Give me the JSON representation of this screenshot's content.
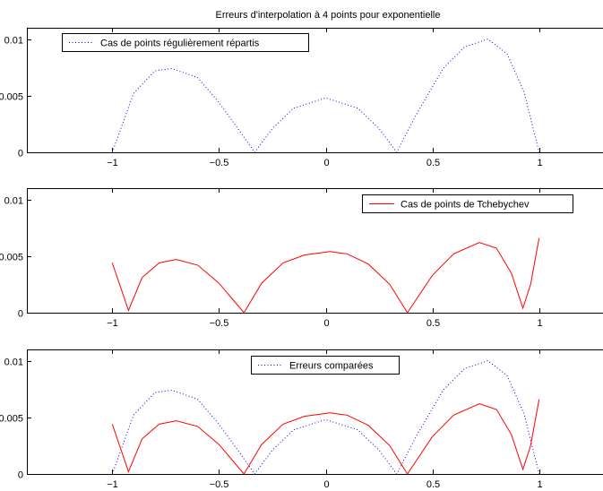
{
  "figure": {
    "title": "Erreurs d'interpolation à 4 points pour exponentielle"
  },
  "chart_data": [
    {
      "type": "line",
      "title": "Erreurs d'interpolation à 4 points pour exponentielle",
      "xlim": [
        -1.4,
        1.4
      ],
      "ylim": [
        0,
        0.011
      ],
      "x_ticks": [
        -1,
        -0.5,
        0,
        0.5,
        1
      ],
      "x_tick_labels": [
        "−1",
        "−0.5",
        "0",
        "0.5",
        "1"
      ],
      "y_ticks": [
        0,
        0.005,
        0.01
      ],
      "y_tick_labels": [
        "0",
        "0.005",
        "0.01"
      ],
      "grid": false,
      "legend_position": "top-left",
      "series": [
        {
          "name": "Cas de points régulièrement répartis",
          "color": "#0000ff",
          "style": "dotted",
          "x": [
            -1,
            -0.9,
            -0.8,
            -0.72,
            -0.6,
            -0.5,
            -0.4,
            -0.333,
            -0.25,
            -0.15,
            0,
            0.15,
            0.25,
            0.333,
            0.42,
            0.55,
            0.65,
            0.76,
            0.85,
            0.93,
            1
          ],
          "y": [
            0,
            0.0052,
            0.0072,
            0.0074,
            0.0066,
            0.0044,
            0.0018,
            0,
            0.0021,
            0.0039,
            0.0048,
            0.0039,
            0.0021,
            0,
            0.0032,
            0.0074,
            0.0093,
            0.01,
            0.0087,
            0.0053,
            0
          ]
        }
      ]
    },
    {
      "type": "line",
      "xlim": [
        -1.4,
        1.4
      ],
      "ylim": [
        0,
        0.011
      ],
      "x_ticks": [
        -1,
        -0.5,
        0,
        0.5,
        1
      ],
      "x_tick_labels": [
        "−1",
        "−0.5",
        "0",
        "0.5",
        "1"
      ],
      "y_ticks": [
        0,
        0.005,
        0.01
      ],
      "y_tick_labels": [
        "0",
        "0.005",
        "0.01"
      ],
      "grid": false,
      "legend_position": "top-right",
      "series": [
        {
          "name": "Cas de points de Tchebychev",
          "color": "#ff0000",
          "style": "solid",
          "x": [
            -1,
            -0.96,
            -0.924,
            -0.86,
            -0.78,
            -0.7,
            -0.6,
            -0.5,
            -0.383,
            -0.3,
            -0.2,
            -0.1,
            0.02,
            0.1,
            0.2,
            0.3,
            0.383,
            0.5,
            0.6,
            0.72,
            0.8,
            0.87,
            0.924,
            0.96,
            1
          ],
          "y": [
            0.0044,
            0.0022,
            0.0002,
            0.0031,
            0.0044,
            0.0047,
            0.0042,
            0.0026,
            0,
            0.0026,
            0.0044,
            0.0051,
            0.0054,
            0.0052,
            0.0043,
            0.0025,
            0,
            0.0033,
            0.0052,
            0.0062,
            0.0057,
            0.0035,
            0.0004,
            0.0025,
            0.0066
          ]
        }
      ]
    },
    {
      "type": "line",
      "xlim": [
        -1.4,
        1.4
      ],
      "ylim": [
        0,
        0.011
      ],
      "x_ticks": [
        -1,
        -0.5,
        0,
        0.5,
        1
      ],
      "x_tick_labels": [
        "−1",
        "−0.5",
        "0",
        "0.5",
        "1"
      ],
      "y_ticks": [
        0,
        0.005,
        0.01
      ],
      "y_tick_labels": [
        "0",
        "0.005",
        "0.01"
      ],
      "grid": false,
      "legend_position": "top-center",
      "legend_title": "Erreurs comparées",
      "series": [
        {
          "color": "#0000ff",
          "style": "dotted",
          "x": [
            -1,
            -0.9,
            -0.8,
            -0.72,
            -0.6,
            -0.5,
            -0.4,
            -0.333,
            -0.25,
            -0.15,
            0,
            0.15,
            0.25,
            0.333,
            0.42,
            0.55,
            0.65,
            0.76,
            0.85,
            0.93,
            1
          ],
          "y": [
            0,
            0.0052,
            0.0072,
            0.0074,
            0.0066,
            0.0044,
            0.0018,
            0,
            0.0021,
            0.0039,
            0.0048,
            0.0039,
            0.0021,
            0,
            0.0032,
            0.0074,
            0.0093,
            0.01,
            0.0087,
            0.0053,
            0
          ]
        },
        {
          "color": "#ff0000",
          "style": "solid",
          "x": [
            -1,
            -0.96,
            -0.924,
            -0.86,
            -0.78,
            -0.7,
            -0.6,
            -0.5,
            -0.383,
            -0.3,
            -0.2,
            -0.1,
            0.02,
            0.1,
            0.2,
            0.3,
            0.383,
            0.5,
            0.6,
            0.72,
            0.8,
            0.87,
            0.924,
            0.96,
            1
          ],
          "y": [
            0.0044,
            0.0022,
            0.0002,
            0.0031,
            0.0044,
            0.0047,
            0.0042,
            0.0026,
            0,
            0.0026,
            0.0044,
            0.0051,
            0.0054,
            0.0052,
            0.0043,
            0.0025,
            0,
            0.0033,
            0.0052,
            0.0062,
            0.0057,
            0.0035,
            0.0004,
            0.0025,
            0.0066
          ]
        }
      ]
    }
  ]
}
